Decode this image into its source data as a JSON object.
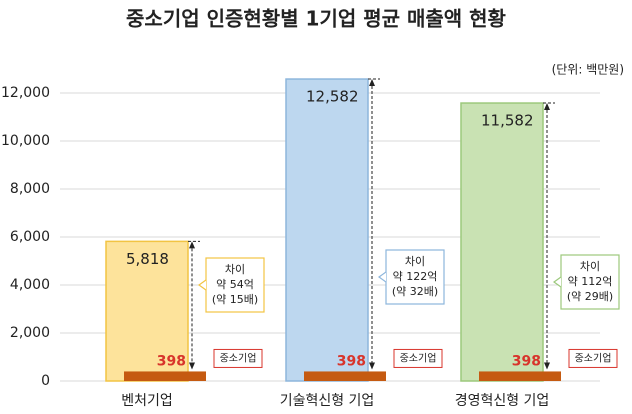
{
  "chart_data": {
    "type": "bar",
    "title": "중소기업 인증현황별 1기업 평균 매출액 현황",
    "unit": "(단위: 백만원)",
    "categories": [
      "벤처기업",
      "기술혁신형 기업",
      "경영혁신형 기업"
    ],
    "series": [
      {
        "colors": [
          "#fde39b",
          "#bdd7ef",
          "#c9e2b3"
        ],
        "values": [
          5818,
          12582,
          11582
        ],
        "value_labels": [
          "5,818",
          "12,582",
          "11,582"
        ]
      },
      {
        "name": "중소기업",
        "color": "#c55a11",
        "values": [
          398,
          398,
          398
        ]
      }
    ],
    "annotations": [
      [
        "차이",
        "약 54억",
        "(약 15배)"
      ],
      [
        "차이",
        "약 122억",
        "(약 32배)"
      ],
      [
        "차이",
        "약 112억",
        "(약 29배)"
      ]
    ],
    "ylim": [
      0,
      13500
    ],
    "yticks": [
      0,
      {
        "value": 2000,
        "label": "2,000"
      },
      {
        "value": 4000,
        "label": "4,000"
      },
      {
        "value": 6000,
        "label": "6,000"
      },
      {
        "value": 8000,
        "label": "8,000"
      },
      {
        "value": 10000,
        "label": "10,000"
      },
      {
        "value": 12000,
        "label": "12,000"
      }
    ],
    "grid": true
  }
}
